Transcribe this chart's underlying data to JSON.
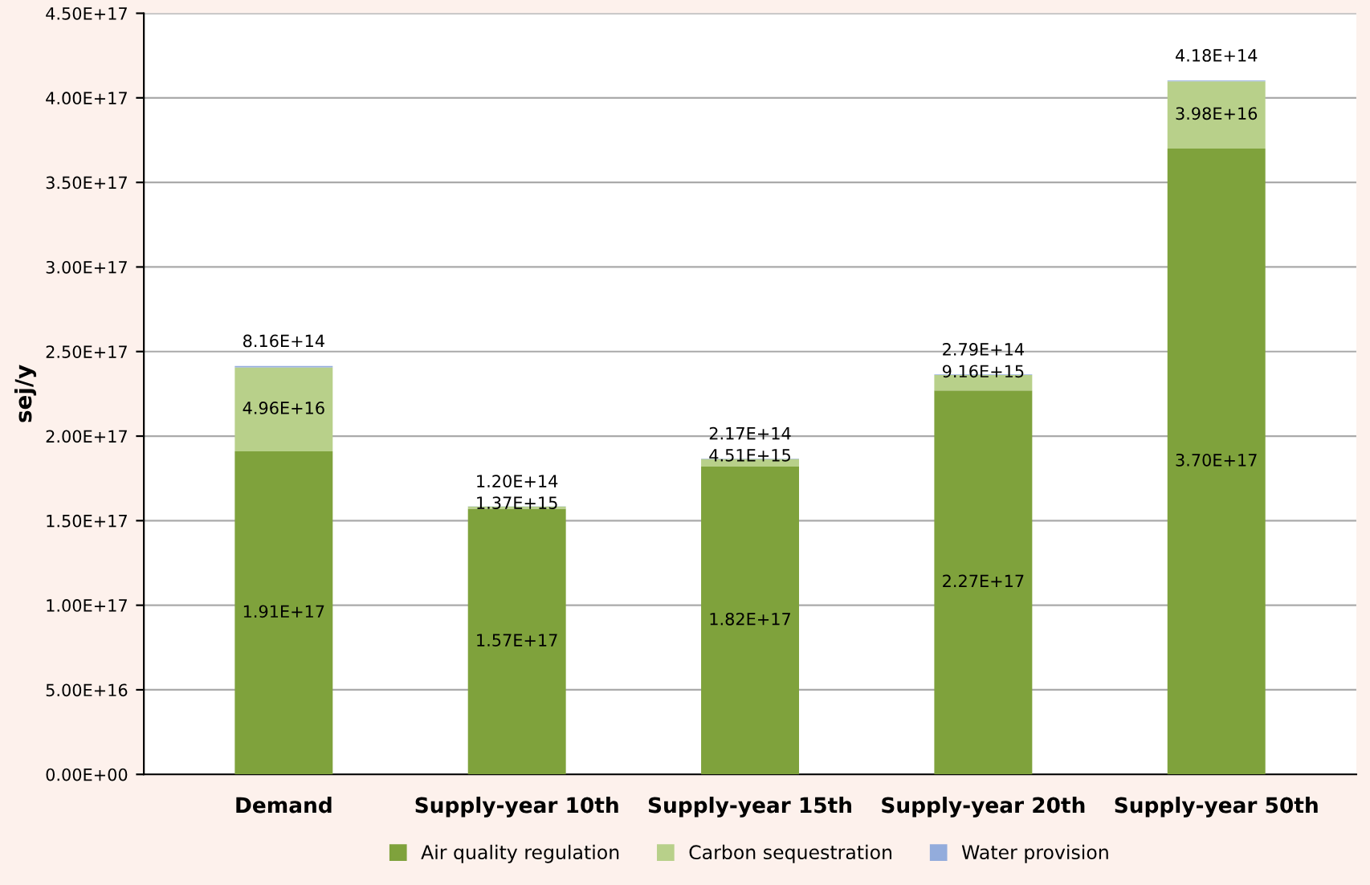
{
  "chart_data": {
    "type": "bar",
    "stacked": true,
    "ylabel": "sej/y",
    "categories": [
      "Demand",
      "Supply-year 10th",
      "Supply-year 15th",
      "Supply-year 20th",
      "Supply-year 50th"
    ],
    "series": [
      {
        "name": "Air quality regulation",
        "color": "#7fa23c",
        "values": [
          1.91e+17,
          1.57e+17,
          1.82e+17,
          2.27e+17,
          3.7e+17
        ],
        "value_labels": [
          "1.91E+17",
          "1.57E+17",
          "1.82E+17",
          "2.27E+17",
          "3.70E+17"
        ]
      },
      {
        "name": "Carbon sequestration",
        "color": "#b8d08a",
        "values": [
          4.96e+16,
          1370000000000000.0,
          4510000000000000.0,
          9160000000000000.0,
          3.98e+16
        ],
        "value_labels": [
          "4.96E+16",
          "1.37E+15",
          "4.51E+15",
          "9.16E+15",
          "3.98E+16"
        ]
      },
      {
        "name": "Water provision",
        "color": "#93acdc",
        "values": [
          816000000000000.0,
          120000000000000.0,
          217000000000000.0,
          279000000000000.0,
          418000000000000.0
        ],
        "value_labels": [
          "8.16E+14",
          "1.20E+14",
          "2.17E+14",
          "2.79E+14",
          "4.18E+14"
        ]
      }
    ],
    "ylim": [
      0,
      4.5e+17
    ],
    "yticks": [
      {
        "value": 0,
        "label": "0.00E+00"
      },
      {
        "value": 5e+16,
        "label": "5.00E+16"
      },
      {
        "value": 1e+17,
        "label": "1.00E+17"
      },
      {
        "value": 1.5e+17,
        "label": "1.50E+17"
      },
      {
        "value": 2e+17,
        "label": "2.00E+17"
      },
      {
        "value": 2.5e+17,
        "label": "2.50E+17"
      },
      {
        "value": 3e+17,
        "label": "3.00E+17"
      },
      {
        "value": 3.5e+17,
        "label": "3.50E+17"
      },
      {
        "value": 4e+17,
        "label": "4.00E+17"
      },
      {
        "value": 4.5e+17,
        "label": "4.50E+17"
      }
    ],
    "grid": "y",
    "legend": "bottom"
  }
}
